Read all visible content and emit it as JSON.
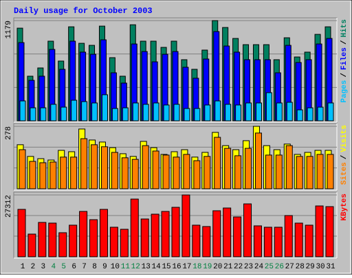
{
  "chart_data": [
    {
      "type": "bar",
      "title": "Daily usage for October 2003",
      "ylim": [
        0,
        1179
      ],
      "yticks": [
        1179
      ],
      "legend_separator": "/",
      "series": [
        {
          "name": "Hits",
          "color": "#008060",
          "values": [
            1090,
            525,
            622,
            937,
            703,
            1106,
            912,
            888,
            1114,
            743,
            525,
            1130,
            937,
            937,
            864,
            937,
            719,
            606,
            832,
            1179,
            1098,
            969,
            896,
            896,
            896,
            719,
            977,
            751,
            808,
            1017,
            1106
          ]
        },
        {
          "name": "Files",
          "color": "#0000ff",
          "values": [
            920,
            476,
            525,
            840,
            606,
            937,
            808,
            783,
            953,
            565,
            444,
            904,
            815,
            694,
            783,
            815,
            630,
            501,
            727,
            1050,
            880,
            808,
            719,
            719,
            719,
            565,
            888,
            686,
            719,
            904,
            969
          ]
        },
        {
          "name": "Pages",
          "color": "#00c0ff",
          "values": [
            234,
            153,
            153,
            194,
            161,
            242,
            226,
            210,
            307,
            145,
            153,
            210,
            194,
            210,
            186,
            194,
            145,
            145,
            186,
            234,
            194,
            186,
            210,
            210,
            331,
            210,
            218,
            129,
            153,
            161,
            210
          ]
        }
      ]
    },
    {
      "type": "bar",
      "ylim": [
        0,
        278
      ],
      "yticks": [
        278
      ],
      "legend_separator": "/",
      "series": [
        {
          "name": "Visits",
          "color": "#ffff00",
          "values": [
            196,
            144,
            134,
            128,
            171,
            165,
            266,
            217,
            208,
            183,
            156,
            144,
            211,
            183,
            153,
            165,
            174,
            141,
            162,
            251,
            192,
            174,
            214,
            278,
            192,
            174,
            199,
            153,
            162,
            171,
            171
          ]
        },
        {
          "name": "Sites",
          "color": "#ff8000",
          "values": [
            174,
            122,
            116,
            119,
            141,
            141,
            223,
            196,
            187,
            162,
            138,
            131,
            192,
            168,
            150,
            141,
            153,
            125,
            144,
            229,
            180,
            147,
            180,
            248,
            150,
            150,
            192,
            144,
            144,
            153,
            153
          ]
        }
      ]
    },
    {
      "type": "bar",
      "ylim": [
        0,
        27312
      ],
      "yticks": [
        27312
      ],
      "categories": [
        "1",
        "2",
        "3",
        "4",
        "5",
        "6",
        "7",
        "8",
        "9",
        "10",
        "11",
        "12",
        "13",
        "14",
        "15",
        "16",
        "17",
        "18",
        "19",
        "20",
        "21",
        "22",
        "23",
        "24",
        "25",
        "26",
        "27",
        "28",
        "29",
        "30",
        "31"
      ],
      "category_colors": [
        "#000000",
        "#000000",
        "#000000",
        "#008040",
        "#008040",
        "#000000",
        "#000000",
        "#000000",
        "#000000",
        "#000000",
        "#008040",
        "#008040",
        "#000000",
        "#000000",
        "#000000",
        "#000000",
        "#000000",
        "#008040",
        "#008040",
        "#000000",
        "#000000",
        "#000000",
        "#000000",
        "#000000",
        "#008040",
        "#008040",
        "#000000",
        "#000000",
        "#000000",
        "#000000",
        "#000000"
      ],
      "series": [
        {
          "name": "KBytes",
          "color": "#ff0000",
          "values": [
            20939,
            10014,
            15173,
            14870,
            10621,
            13960,
            20029,
            16387,
            20939,
            13049,
            12139,
            25491,
            16691,
            18814,
            20029,
            21850,
            27312,
            13960,
            13352,
            20332,
            21546,
            17601,
            23367,
            13656,
            13049,
            13049,
            18208,
            14870,
            13960,
            22457,
            22154
          ]
        }
      ]
    }
  ]
}
